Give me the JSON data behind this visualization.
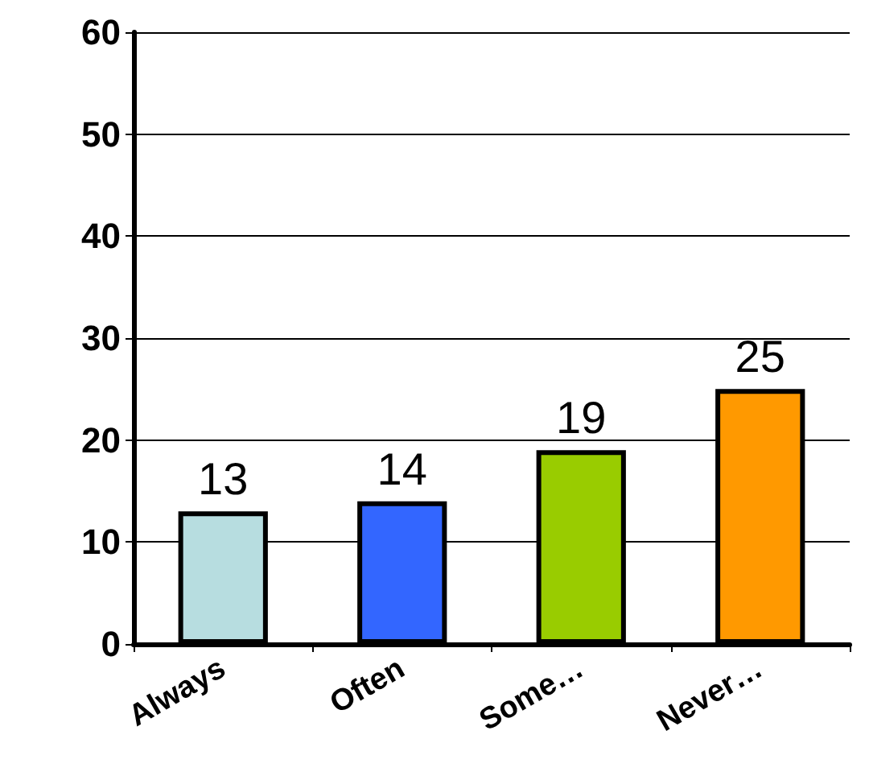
{
  "chart_data": {
    "type": "bar",
    "categories": [
      "Always",
      "Often",
      "Some…",
      "Never…"
    ],
    "values": [
      13,
      14,
      19,
      25
    ],
    "colors": [
      "#b7dde0",
      "#3366ff",
      "#99cc00",
      "#ff9900"
    ],
    "ylim": [
      0,
      60
    ],
    "yticks": [
      0,
      10,
      20,
      30,
      40,
      50,
      60
    ],
    "grid": "y",
    "data_labels": true
  }
}
